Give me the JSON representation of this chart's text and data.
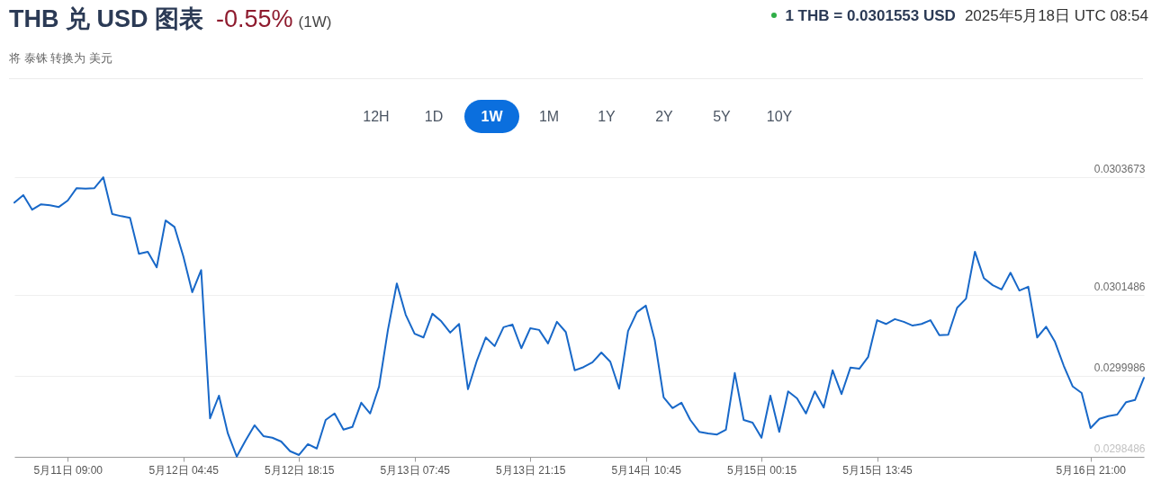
{
  "chart_data": {
    "type": "line",
    "title": "THB 兑 USD 图表",
    "subtitle": "将 泰铢 转换为 美元",
    "annotations": [
      "-0.55%",
      "(1W)",
      "1 THB = 0.0301553 USD",
      "2025年5月18日 UTC 08:54",
      "12H",
      "1D",
      "1W",
      "1M",
      "1Y",
      "2Y",
      "5Y",
      "10Y"
    ],
    "categories": [
      null,
      null,
      null,
      null,
      null,
      null,
      "5月11日 09:00",
      null,
      null,
      null,
      null,
      null,
      null,
      null,
      null,
      null,
      null,
      null,
      null,
      "5月12日 04:45",
      null,
      null,
      null,
      null,
      null,
      null,
      null,
      null,
      null,
      null,
      null,
      null,
      "5月12日 18:15",
      null,
      null,
      null,
      null,
      null,
      null,
      null,
      null,
      null,
      null,
      null,
      null,
      "5月13日 07:45",
      null,
      null,
      null,
      null,
      null,
      null,
      null,
      null,
      null,
      null,
      null,
      null,
      "5月13日 21:15",
      null,
      null,
      null,
      null,
      null,
      null,
      null,
      null,
      null,
      null,
      null,
      null,
      "5月14日 10:45",
      null,
      null,
      null,
      null,
      null,
      null,
      null,
      null,
      null,
      null,
      null,
      null,
      "5月15日 00:15",
      null,
      null,
      null,
      null,
      null,
      null,
      null,
      null,
      null,
      null,
      null,
      null,
      "5月15日 13:45",
      null,
      null,
      null,
      null,
      null,
      null,
      null,
      null,
      null,
      null,
      null,
      null,
      null,
      null,
      null,
      null,
      null,
      null,
      null,
      null,
      null,
      null,
      null,
      "5月16日 21:00",
      null,
      null,
      null,
      null,
      null,
      null
    ],
    "series": [
      {
        "color": "#1868c8",
        "values": [
          0.03032,
          0.030334,
          0.030307,
          0.030317,
          0.030315,
          0.030312,
          0.030324,
          0.030347,
          0.030346,
          0.030347,
          0.030367,
          0.030299,
          0.030295,
          0.030292,
          0.030225,
          0.030229,
          0.0302,
          0.030287,
          0.030275,
          0.03022,
          0.030154,
          0.030195,
          0.02992,
          0.029962,
          0.029892,
          0.029849,
          0.029879,
          0.029907,
          0.029887,
          0.029884,
          0.029877,
          0.029859,
          0.029852,
          0.029872,
          0.029864,
          0.029917,
          0.029929,
          0.029899,
          0.029904,
          0.029949,
          0.029929,
          0.029979,
          0.030084,
          0.03017,
          0.030112,
          0.030077,
          0.03007,
          0.030114,
          0.0301,
          0.030079,
          0.030095,
          0.029974,
          0.030027,
          0.03007,
          0.030054,
          0.030089,
          0.030094,
          0.03005,
          0.030087,
          0.030084,
          0.030059,
          0.030099,
          0.03008,
          0.030009,
          0.030015,
          0.030024,
          0.030042,
          0.030025,
          0.029975,
          0.030082,
          0.030117,
          0.030129,
          0.030065,
          0.029959,
          0.029939,
          0.029949,
          0.029917,
          0.029895,
          0.029892,
          0.02989,
          0.029899,
          0.030004,
          0.029917,
          0.029912,
          0.029884,
          0.029962,
          0.029895,
          0.02997,
          0.029957,
          0.029929,
          0.02997,
          0.02994,
          0.030009,
          0.029965,
          0.030014,
          0.030012,
          0.030034,
          0.030102,
          0.030095,
          0.030104,
          0.030099,
          0.030092,
          0.030095,
          0.030102,
          0.030074,
          0.030075,
          0.030125,
          0.030142,
          0.030229,
          0.03018,
          0.030167,
          0.030159,
          0.03019,
          0.030157,
          0.030164,
          0.03007,
          0.03009,
          0.030062,
          0.030017,
          0.029979,
          0.029967,
          0.029902,
          0.029919,
          0.029924,
          0.029927,
          0.02995,
          0.029954,
          0.029995
        ]
      }
    ],
    "ylim": [
      0.0298486,
      0.0303673
    ],
    "yticks": [
      0.0298486,
      0.0299986,
      0.0301486,
      0.0303673
    ],
    "grid": "y"
  }
}
